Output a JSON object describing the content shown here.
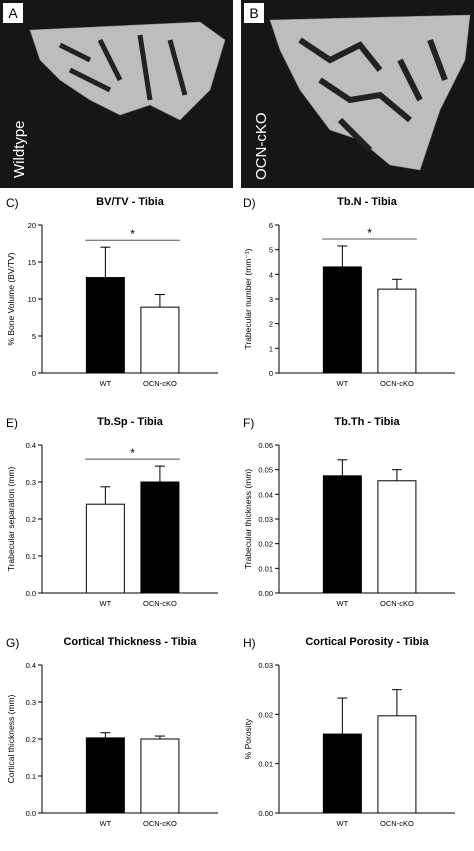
{
  "panels": [
    {
      "label": "A",
      "caption": "Wildtype"
    },
    {
      "label": "B",
      "caption": "OCN-cKO"
    }
  ],
  "chart_data": [
    {
      "type": "bar",
      "panel": "C)",
      "title": "BV/TV - Tibia",
      "ylabel": "% Bone Volume (BV/TV)",
      "categories": [
        "WT",
        "OCN-cKO"
      ],
      "values": [
        12.9,
        8.9
      ],
      "errors": [
        4.1,
        1.7
      ],
      "colors": [
        "#000000",
        "#ffffff"
      ],
      "ylim": [
        0,
        20
      ],
      "yticks": [
        0,
        5,
        10,
        15,
        20
      ],
      "significance": "*"
    },
    {
      "type": "bar",
      "panel": "D)",
      "title": "Tb.N -  Tibia",
      "ylabel": "Trabecular number (mm⁻¹)",
      "categories": [
        "WT",
        "OCN-cKO"
      ],
      "values": [
        4.3,
        3.4
      ],
      "errors": [
        0.85,
        0.4
      ],
      "colors": [
        "#000000",
        "#ffffff"
      ],
      "ylim": [
        0,
        6
      ],
      "yticks": [
        0,
        1,
        2,
        3,
        4,
        5,
        6
      ],
      "significance": "*"
    },
    {
      "type": "bar",
      "panel": "E)",
      "title": "Tb.Sp - Tibia",
      "ylabel": "Trabecular separation (mm)",
      "categories": [
        "WT",
        "OCN-cKO"
      ],
      "values": [
        0.24,
        0.3
      ],
      "errors": [
        0.047,
        0.043
      ],
      "colors": [
        "#ffffff",
        "#000000"
      ],
      "ylim": [
        0,
        0.4
      ],
      "yticks": [
        {
          "value": 0,
          "label": "0.0"
        },
        0.1,
        0.2,
        0.3,
        0.4
      ],
      "significance": "*"
    },
    {
      "type": "bar",
      "panel": "F)",
      "title": "Tb.Th - Tibia",
      "ylabel": "Trabecular thickness   (mm)",
      "categories": [
        "WT",
        "OCN-cKO"
      ],
      "values": [
        0.0475,
        0.0455
      ],
      "errors": [
        0.0065,
        0.0045
      ],
      "colors": [
        "#000000",
        "#ffffff"
      ],
      "ylim": [
        0,
        0.06
      ],
      "yticks": [
        {
          "value": 0,
          "label": "0.00"
        },
        0.01,
        0.02,
        0.03,
        0.04,
        0.05,
        0.06
      ]
    },
    {
      "type": "bar",
      "panel": "G)",
      "title": "Cortical Thickness -  Tibia",
      "ylabel": "Cortical thickness  (mm)",
      "categories": [
        "WT",
        "OCN-cKO"
      ],
      "values": [
        0.203,
        0.2
      ],
      "errors": [
        0.014,
        0.008
      ],
      "colors": [
        "#000000",
        "#ffffff"
      ],
      "ylim": [
        0,
        0.4
      ],
      "yticks": [
        {
          "value": 0,
          "label": "0.0"
        },
        0.1,
        0.2,
        0.3,
        0.4
      ]
    },
    {
      "type": "bar",
      "panel": "H)",
      "title": "Cortical Porosity - Tibia",
      "ylabel": "% Porosity",
      "categories": [
        "WT",
        "OCN-cKO"
      ],
      "values": [
        0.016,
        0.0197
      ],
      "errors": [
        0.0073,
        0.0053
      ],
      "colors": [
        "#000000",
        "#ffffff"
      ],
      "ylim": [
        0,
        0.03
      ],
      "yticks": [
        {
          "value": 0,
          "label": "0.00"
        },
        0.01,
        0.02,
        0.03
      ]
    }
  ]
}
